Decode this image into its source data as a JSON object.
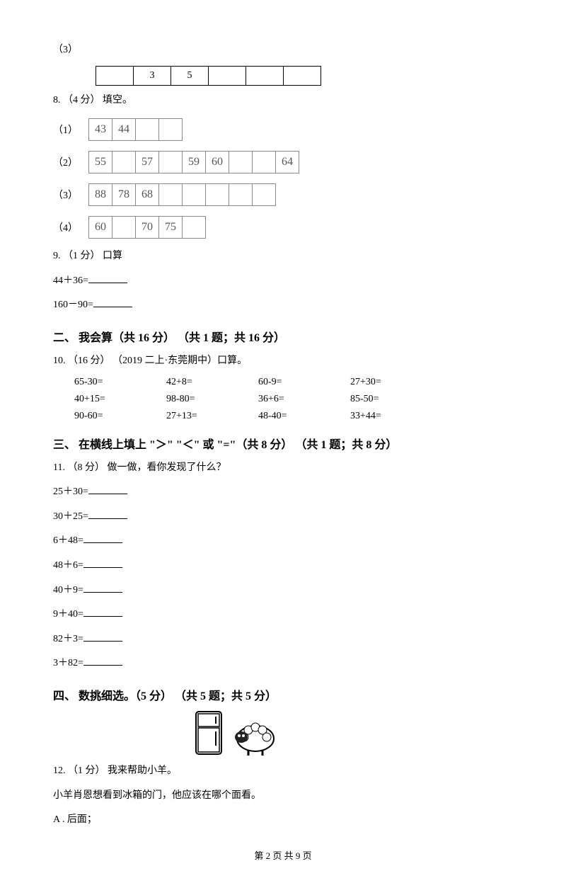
{
  "q7_3": {
    "label": "（3）",
    "cells": [
      "",
      "3",
      "5",
      "",
      "",
      ""
    ]
  },
  "q8": {
    "header": "8.  （4 分）  填空。",
    "rows": [
      {
        "label": "（1）",
        "cells": [
          "43",
          "44",
          "",
          ""
        ]
      },
      {
        "label": "（2）",
        "cells": [
          "55",
          "",
          "57",
          "",
          "59",
          "60",
          "",
          "",
          "64"
        ]
      },
      {
        "label": "（3）",
        "cells": [
          "88",
          "78",
          "68",
          "",
          "",
          "",
          "",
          ""
        ]
      },
      {
        "label": "（4）",
        "cells": [
          "60",
          "",
          "70",
          "75",
          ""
        ]
      }
    ]
  },
  "q9": {
    "header": "9.  （1 分）  口算",
    "items": [
      "44＋36=",
      "160－90="
    ]
  },
  "sec2": {
    "title": "二、  我会算（共 16 分）  （共 1 题；共 16 分）",
    "q10header": "10.  （16 分）  （2019 二上·东莞期中）口算。",
    "rows": [
      [
        "65-30=",
        "42+8=",
        "60-9=",
        "27+30="
      ],
      [
        "40+15=",
        "98-80=",
        "36+6=",
        "85-50="
      ],
      [
        "90-60=",
        "27+13=",
        "48-40=",
        "33+44="
      ]
    ]
  },
  "sec3": {
    "title": "三、  在横线上填上 \"＞\" \"＜\" 或 \"=\"（共 8 分）  （共 1 题；共 8 分）",
    "q11header": "11.  （8 分）  做一做，看你发现了什么？",
    "items": [
      "25＋30=",
      "30＋25=",
      "6＋48=",
      "48＋6=",
      "40＋9=",
      "9＋40=",
      "82＋3=",
      "3＋82="
    ]
  },
  "sec4": {
    "title": "四、  数挑细选。（5 分）  （共 5 题；共 5 分）",
    "q12header": "12.  （1 分）  我来帮助小羊。",
    "q12line": "小羊肖恩想看到冰箱的门，他应该在哪个面看。",
    "q12optA": "A .  后面；"
  },
  "footer": "第 2 页 共 9 页"
}
